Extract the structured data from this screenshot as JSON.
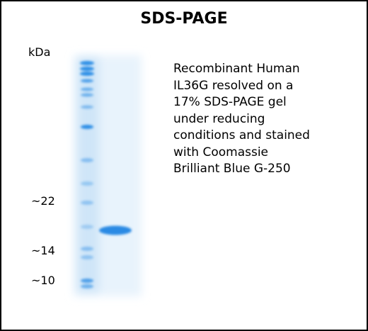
{
  "title": "SDS-PAGE",
  "unit": "kDa",
  "markers": [
    "~22",
    "~14",
    "~10"
  ],
  "description": [
    "Recombinant Human",
    "IL36G resolved on a",
    "17% SDS-PAGE gel",
    "under reducing",
    "conditions and stained",
    "with Coomassie",
    "Brilliant Blue G-250"
  ]
}
